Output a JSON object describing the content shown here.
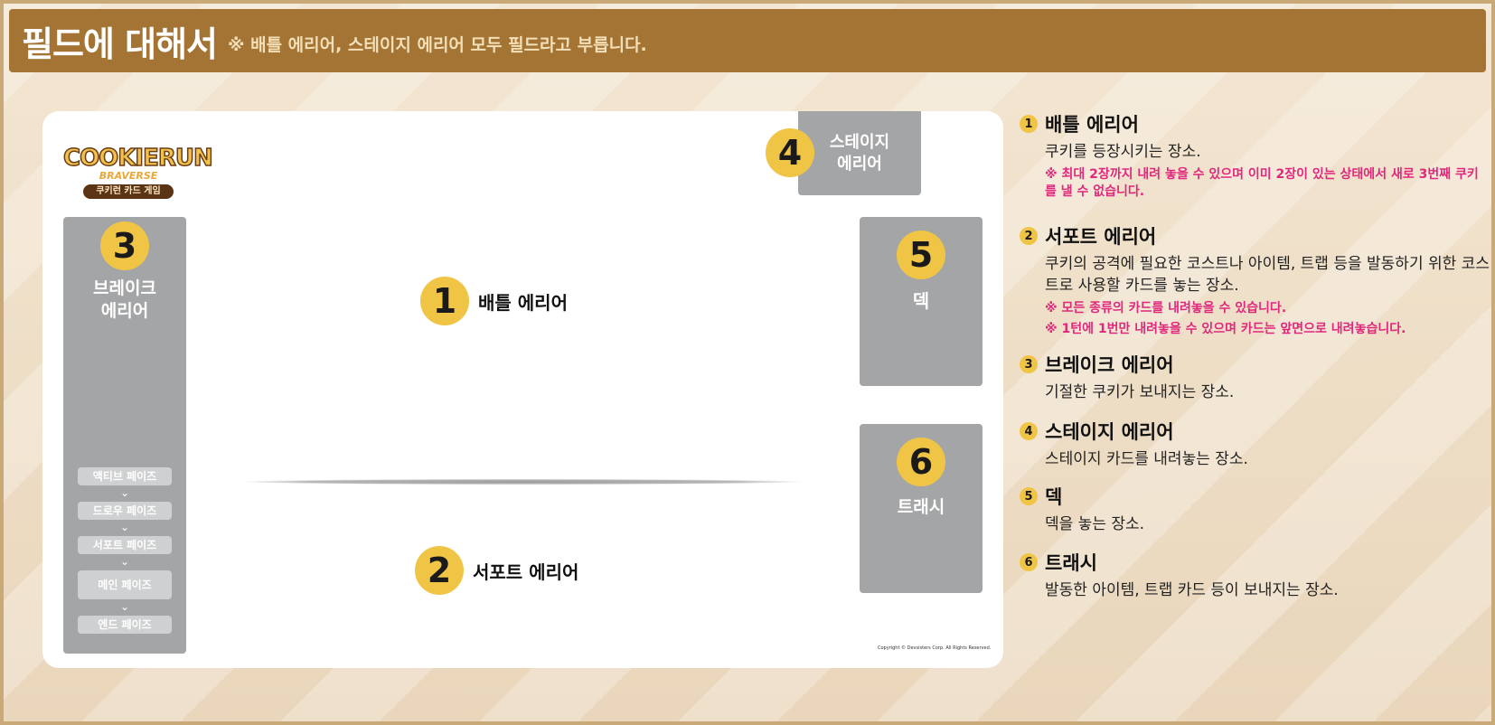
{
  "header": {
    "title": "필드에 대해서",
    "note": "※ 배틀 에리어, 스테이지 에리어 모두 필드라고 부릅니다."
  },
  "logo": {
    "word": "COOKIERUN",
    "sub": "BRAVERSE",
    "tag": "쿠키런 카드 게임"
  },
  "board": {
    "break_area": {
      "num": "3",
      "label": "브레이크\n에리어"
    },
    "stage_area": {
      "num": "4",
      "label": "스테이지\n에리어"
    },
    "deck": {
      "num": "5",
      "label": "덱"
    },
    "trash": {
      "num": "6",
      "label": "트래시"
    },
    "battle_area": {
      "num": "1",
      "label": "배틀 에리어"
    },
    "support_area": {
      "num": "2",
      "label": "서포트 에리어"
    },
    "phases": [
      "액티브 페이즈",
      "드로우 페이즈",
      "서포트 페이즈",
      "메인 페이즈",
      "엔드 페이즈"
    ],
    "chevron": "⌄",
    "copyright": "Copyright © Devsisters Corp. All Rights Reserved."
  },
  "legend": [
    {
      "num": "1",
      "title": "배틀 에리어",
      "desc": "쿠키를 등장시키는 장소.",
      "notes": [
        "※ 최대 2장까지 내려 놓을 수 있으며 이미 2장이 있는 상태에서 새로 3번째 쿠키를 낼 수 없습니다."
      ]
    },
    {
      "num": "2",
      "title": "서포트 에리어",
      "desc": "쿠키의 공격에 필요한 코스트나 아이템, 트랩 등을 발동하기 위한 코스트로 사용할 카드를 놓는 장소.",
      "notes": [
        "※ 모든 종류의 카드를 내려놓을 수 있습니다.",
        "※ 1턴에 1번만 내려놓을 수 있으며 카드는 앞면으로 내려놓습니다."
      ]
    },
    {
      "num": "3",
      "title": "브레이크 에리어",
      "desc": "기절한 쿠키가 보내지는 장소.",
      "notes": []
    },
    {
      "num": "4",
      "title": "스테이지 에리어",
      "desc": "스테이지 카드를 내려놓는 장소.",
      "notes": []
    },
    {
      "num": "5",
      "title": "덱",
      "desc": "덱을 놓는 장소.",
      "notes": []
    },
    {
      "num": "6",
      "title": "트래시",
      "desc": "발동한 아이템, 트랩 카드 등이 보내지는 장소.",
      "notes": []
    }
  ],
  "colors": {
    "header_bg": "#a47434",
    "badge": "#f0c545",
    "zone": "#a4a5a6",
    "note": "#e0287c"
  }
}
